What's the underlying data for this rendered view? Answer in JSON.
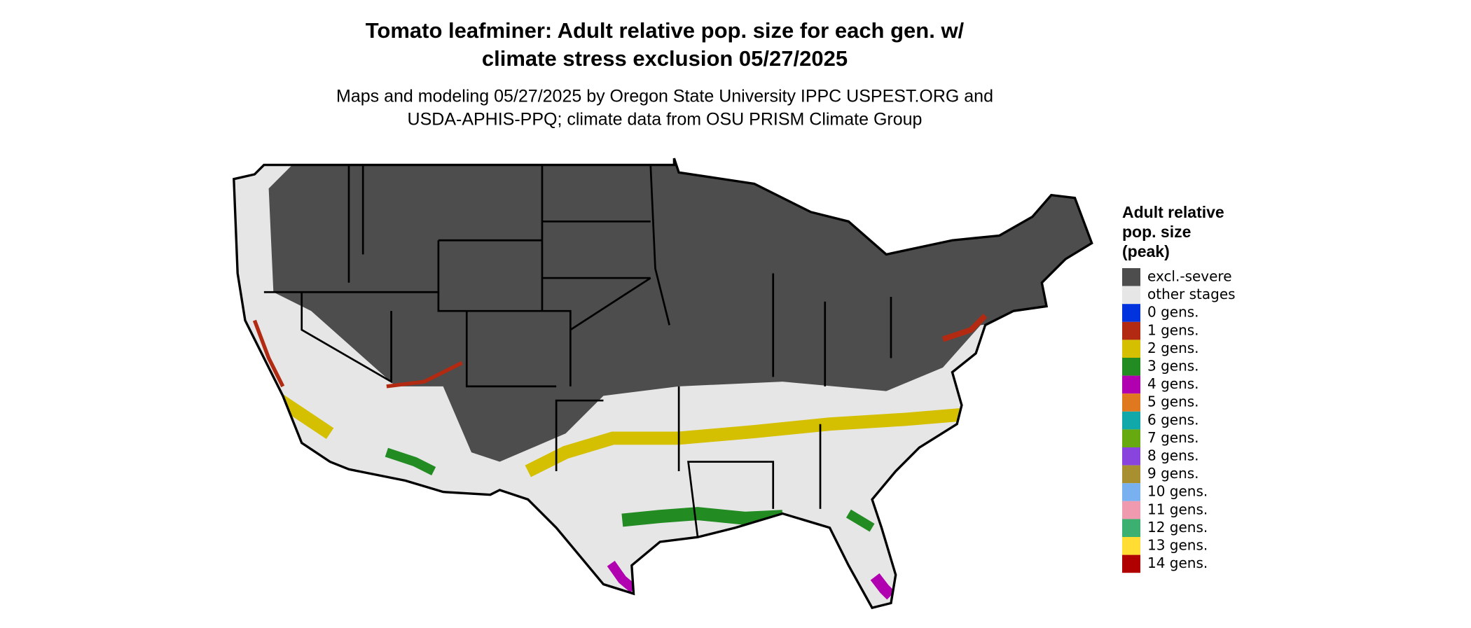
{
  "header": {
    "title_lines": [
      "Tomato leafminer: Adult relative pop. size for each gen. w/",
      "climate stress exclusion 05/27/2025"
    ],
    "subtitle_lines": [
      "Maps and modeling 05/27/2025 by Oregon State University IPPC USPEST.ORG and",
      "USDA-APHIS-PPQ; climate data from OSU PRISM Climate Group"
    ]
  },
  "legend": {
    "title_lines": [
      "Adult relative",
      "pop. size",
      "(peak)"
    ],
    "items": [
      {
        "label": "excl.-severe",
        "color": "#4d4d4d"
      },
      {
        "label": "other stages",
        "color": "#e6e6e6"
      },
      {
        "label": "0 gens.",
        "color": "#0033dd"
      },
      {
        "label": "1 gens.",
        "color": "#b22a12"
      },
      {
        "label": "2 gens.",
        "color": "#d4c000"
      },
      {
        "label": "3 gens.",
        "color": "#228b22"
      },
      {
        "label": "4 gens.",
        "color": "#b000b0"
      },
      {
        "label": "5 gens.",
        "color": "#e07820"
      },
      {
        "label": "6 gens.",
        "color": "#10a8a8"
      },
      {
        "label": "7 gens.",
        "color": "#66aa10"
      },
      {
        "label": "8 gens.",
        "color": "#8844dd"
      },
      {
        "label": "9 gens.",
        "color": "#a89030"
      },
      {
        "label": "10 gens.",
        "color": "#78b0f0"
      },
      {
        "label": "11 gens.",
        "color": "#f09ab0"
      },
      {
        "label": "12 gens.",
        "color": "#3cb070"
      },
      {
        "label": "13 gens.",
        "color": "#ffdd33"
      },
      {
        "label": "14 gens.",
        "color": "#b00000"
      }
    ]
  }
}
